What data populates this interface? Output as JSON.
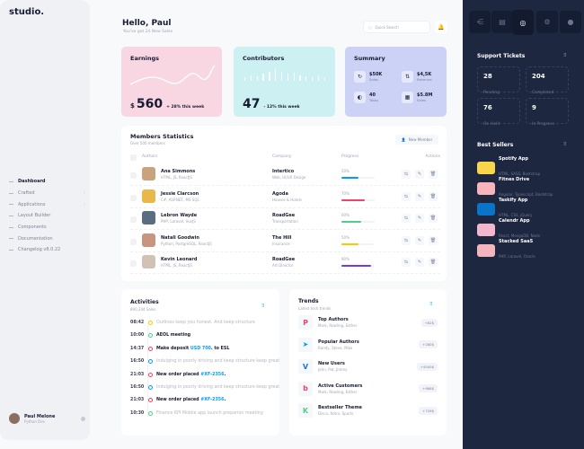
{
  "brand": "studio.",
  "nav": [
    {
      "label": "Dashboard",
      "active": true
    },
    {
      "label": "Crafted",
      "chevron": true
    },
    {
      "label": "Applications",
      "chevron": true
    },
    {
      "label": "Layout Builder"
    },
    {
      "label": "Components"
    },
    {
      "label": "Documentation"
    },
    {
      "label": "Changelog v8.0.22"
    }
  ],
  "user": {
    "name": "Paul Melone",
    "role": "Python Dev"
  },
  "header": {
    "title": "Hello, Paul",
    "subtitle": "You've got 24 New Sales",
    "search_placeholder": "Quick Search"
  },
  "earnings": {
    "title": "Earnings",
    "currency": "$",
    "value": "560",
    "change": "+ 28% this week",
    "color": "#f8d7e2"
  },
  "contributors": {
    "title": "Contributors",
    "value": "47",
    "change": "- 12% this week",
    "color": "#cdf0f2"
  },
  "summary": {
    "title": "Summary",
    "color": "#ccd2f5",
    "items": [
      {
        "value": "$50K",
        "label": "Sales"
      },
      {
        "value": "$4,5K",
        "label": "Revenue"
      },
      {
        "value": "40",
        "label": "Tasks"
      },
      {
        "value": "$5.8M",
        "label": "Sales"
      }
    ]
  },
  "members": {
    "title": "Members Statistics",
    "subtitle": "Over 500 members",
    "new_button": "New Member",
    "columns": [
      "Authors",
      "Company",
      "Progress",
      "Actions"
    ],
    "rows": [
      {
        "name": "Ana Simmons",
        "skills": "HTML, JS, ReactJS",
        "company": "Intertico",
        "dept": "Web, UI/UX Design",
        "progress": "50%",
        "value": 50,
        "color": "#009ef7",
        "avatar": "#c9a27e"
      },
      {
        "name": "Jessie Clarcson",
        "skills": "C#, ASP.NET, MS SQL",
        "company": "Agoda",
        "dept": "Houses & Hotels",
        "progress": "70%",
        "value": 70,
        "color": "#f1416c",
        "avatar": "#e8b84a"
      },
      {
        "name": "Lebron Wayde",
        "skills": "PHP, Laravel, VueJS",
        "company": "RoadGee",
        "dept": "Transportation",
        "progress": "60%",
        "value": 60,
        "color": "#50cd89",
        "avatar": "#5a6d80"
      },
      {
        "name": "Natali Goodwin",
        "skills": "Python, PostgreSQL, ReactJS",
        "company": "The Hill",
        "dept": "Insurance",
        "progress": "50%",
        "value": 50,
        "color": "#ffc700",
        "avatar": "#c79580"
      },
      {
        "name": "Kevin Leonard",
        "skills": "HTML, JS, ReactJS",
        "company": "RoadGee",
        "dept": "Art Director",
        "progress": "90%",
        "value": 90,
        "color": "#7239ea",
        "avatar": "#d2c2b5"
      }
    ]
  },
  "activities": {
    "title": "Activities",
    "subtitle": "890,344 Sales",
    "items": [
      {
        "time": "08:42",
        "text": "Outlines keep you honest. And keep structure",
        "color": "#ffc700",
        "style": "muted"
      },
      {
        "time": "10:00",
        "text": "AEOL meeting",
        "color": "#50cd89",
        "style": "bold"
      },
      {
        "time": "14:37",
        "text": "Make deposit ",
        "link": "USD 700",
        "after": ". to ESL",
        "color": "#f1416c",
        "style": "bold"
      },
      {
        "time": "16:50",
        "text": "Indulging in poorly driving and keep structure keep great",
        "color": "#009ef7",
        "style": "muted"
      },
      {
        "time": "21:03",
        "text": "New order placed ",
        "link": "#XF-2356",
        "after": ".",
        "color": "#f1416c",
        "style": "bold"
      },
      {
        "time": "16:50",
        "text": "Indulging in poorly driving and keep structure keep great",
        "color": "#009ef7",
        "style": "muted"
      },
      {
        "time": "21:03",
        "text": "New order placed ",
        "link": "#XF-2356",
        "after": ".",
        "color": "#f1416c",
        "style": "bold"
      },
      {
        "time": "10:30",
        "text": "Finance KPI Mobile app launch preparion meeting",
        "color": "#50cd89",
        "style": "muted"
      }
    ]
  },
  "trends": {
    "title": "Trends",
    "subtitle": "Latest tech trends",
    "items": [
      {
        "title": "Top Authors",
        "sub": "Mark, Rowling, Esther",
        "badge": "+82$",
        "icon": "P",
        "color": "#f1416c"
      },
      {
        "title": "Popular Authors",
        "sub": "Randy, Steve, Mike",
        "badge": "+280$",
        "icon": "➤",
        "color": "#009ef7"
      },
      {
        "title": "New Users",
        "sub": "John, Pat, Jimmy",
        "badge": "+4500$",
        "icon": "V",
        "color": "#1a73e8"
      },
      {
        "title": "Active Customers",
        "sub": "Mark, Rowling, Esther",
        "badge": "+686$",
        "icon": "b",
        "color": "#f1416c"
      },
      {
        "title": "Bestseller Theme",
        "sub": "Disco, Retro, Sports",
        "badge": "+726$",
        "icon": "K",
        "color": "#50cd89"
      }
    ]
  },
  "support": {
    "title": "Support Tickets",
    "tickets": [
      {
        "value": "28",
        "label": "Pending"
      },
      {
        "value": "204",
        "label": "Completed"
      },
      {
        "value": "76",
        "label": "On Hold"
      },
      {
        "value": "9",
        "label": "In Progress"
      }
    ]
  },
  "best_sellers": {
    "title": "Best Sellers",
    "items": [
      {
        "title": "Spotify App",
        "sub": "HTML, SASS, Bootstrap",
        "color": "#f7d749"
      },
      {
        "title": "Fitnes Drive",
        "sub": "Angular, Typescript, Bootstrap",
        "color": "#f8b4bb"
      },
      {
        "title": "Taskify App",
        "sub": "HTML, CSS, jQuery",
        "color": "#0a74c8"
      },
      {
        "title": "Calendr App",
        "sub": "React, MongoDB, Node",
        "color": "#f3b7cd"
      },
      {
        "title": "Stacked SaaS",
        "sub": "PHP, Laravel, Oracle",
        "color": "#f5b5bd"
      }
    ]
  }
}
